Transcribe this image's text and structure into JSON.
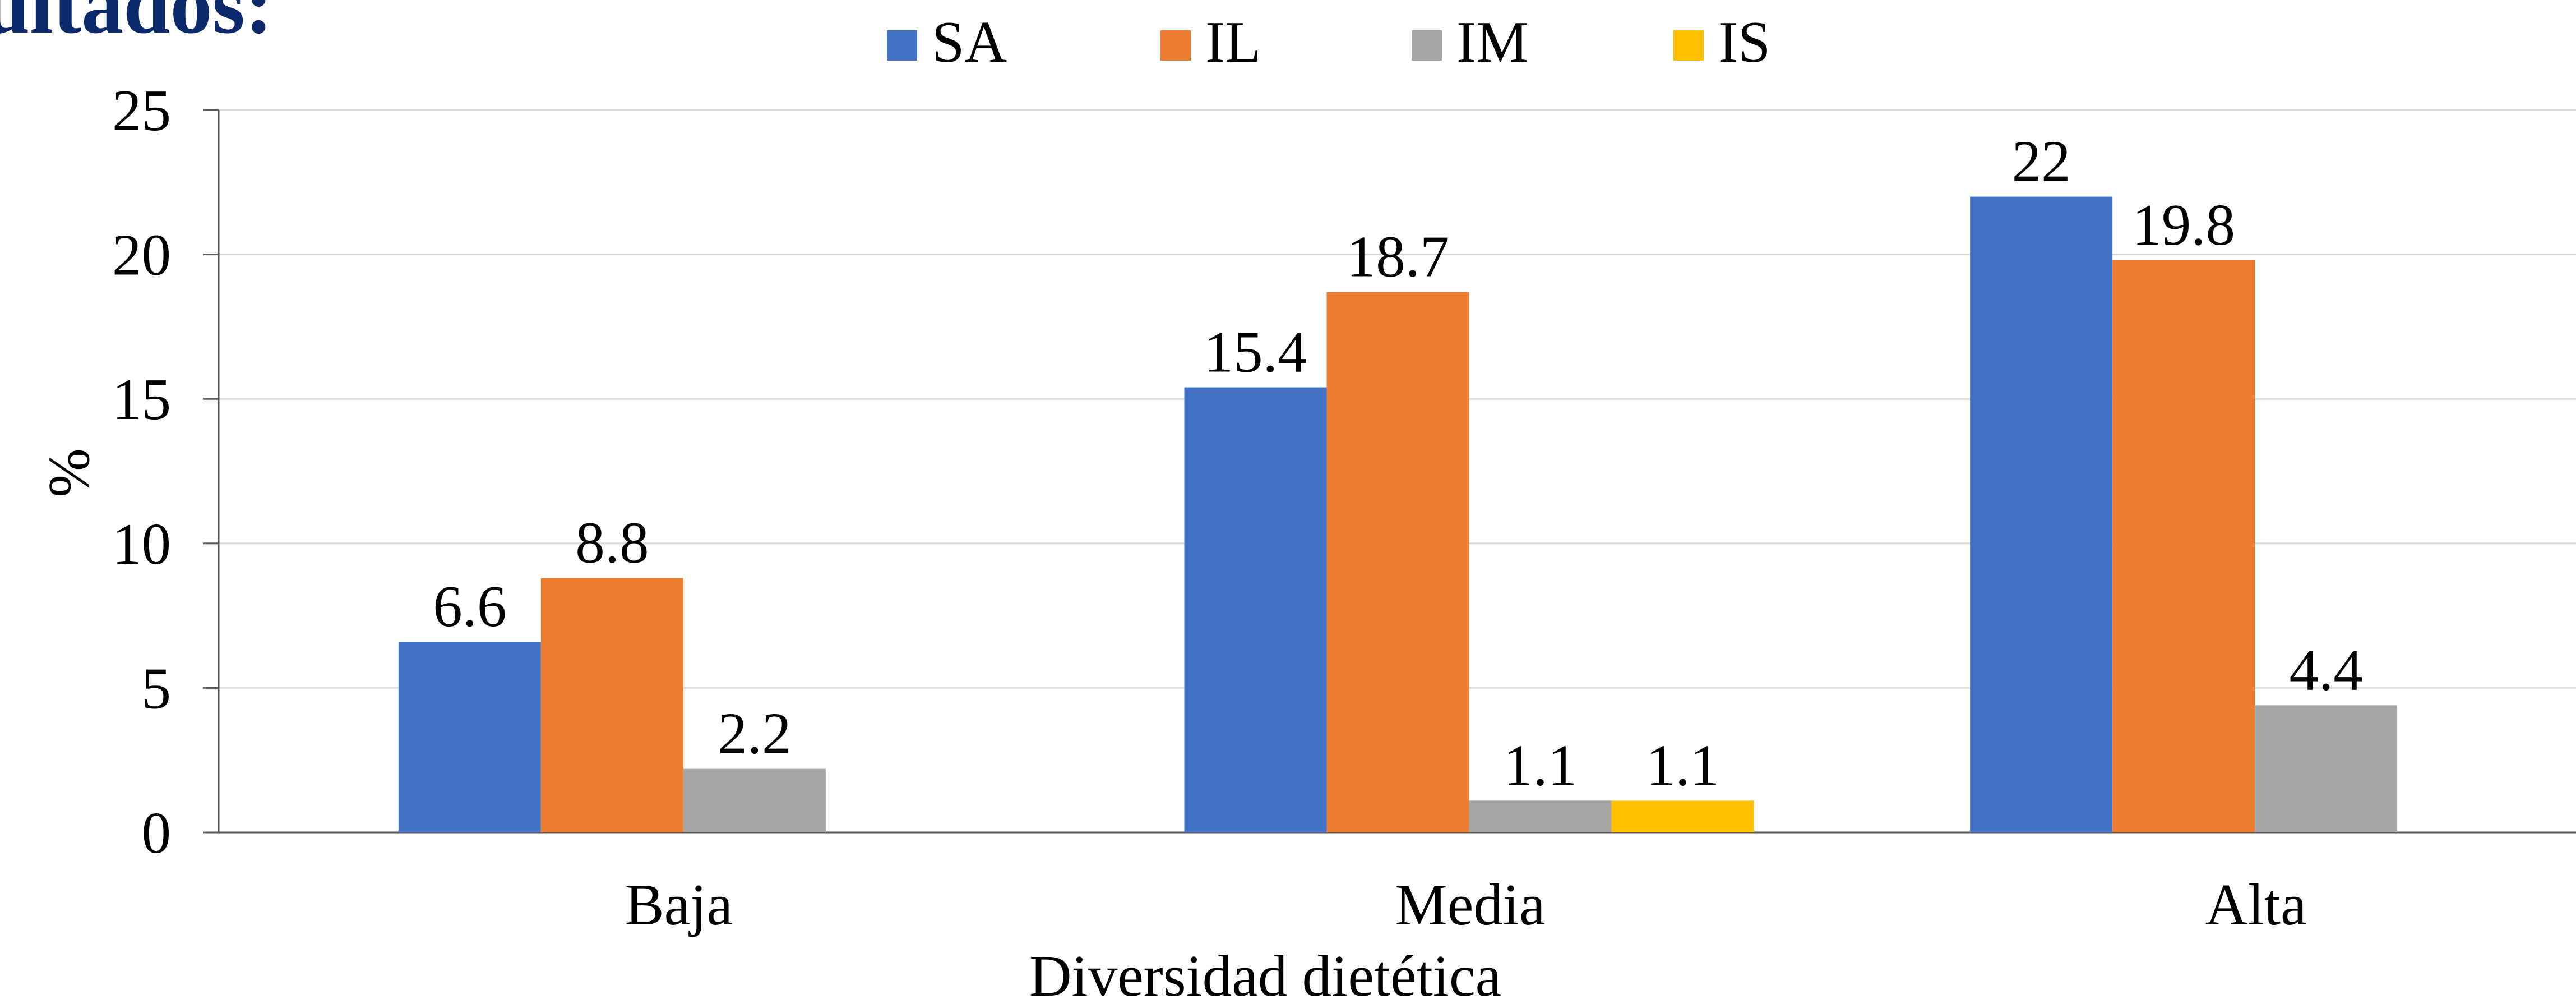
{
  "page": {
    "heading": "ultados:"
  },
  "chart_data": {
    "type": "bar",
    "title": "",
    "xlabel": "Diversidad dietética",
    "ylabel": "%",
    "ylim": [
      0,
      25
    ],
    "yticks": [
      0,
      5,
      10,
      15,
      20,
      25
    ],
    "categories": [
      "Baja",
      "Media",
      "Alta"
    ],
    "grid": true,
    "legend_position": "top",
    "series": [
      {
        "name": "SA",
        "color": "#4472C4",
        "values": [
          6.6,
          15.4,
          22
        ],
        "labels": [
          "6.6",
          "15.4",
          "22"
        ]
      },
      {
        "name": "IL",
        "color": "#ED7D31",
        "values": [
          8.8,
          18.7,
          19.8
        ],
        "labels": [
          "8.8",
          "18.7",
          "19.8"
        ]
      },
      {
        "name": "IM",
        "color": "#A5A5A5",
        "values": [
          2.2,
          1.1,
          4.4
        ],
        "labels": [
          "2.2",
          "1.1",
          "4.4"
        ]
      },
      {
        "name": "IS",
        "color": "#FFC000",
        "values": [
          null,
          1.1,
          null
        ],
        "labels": [
          null,
          "1.1",
          null
        ]
      }
    ]
  }
}
